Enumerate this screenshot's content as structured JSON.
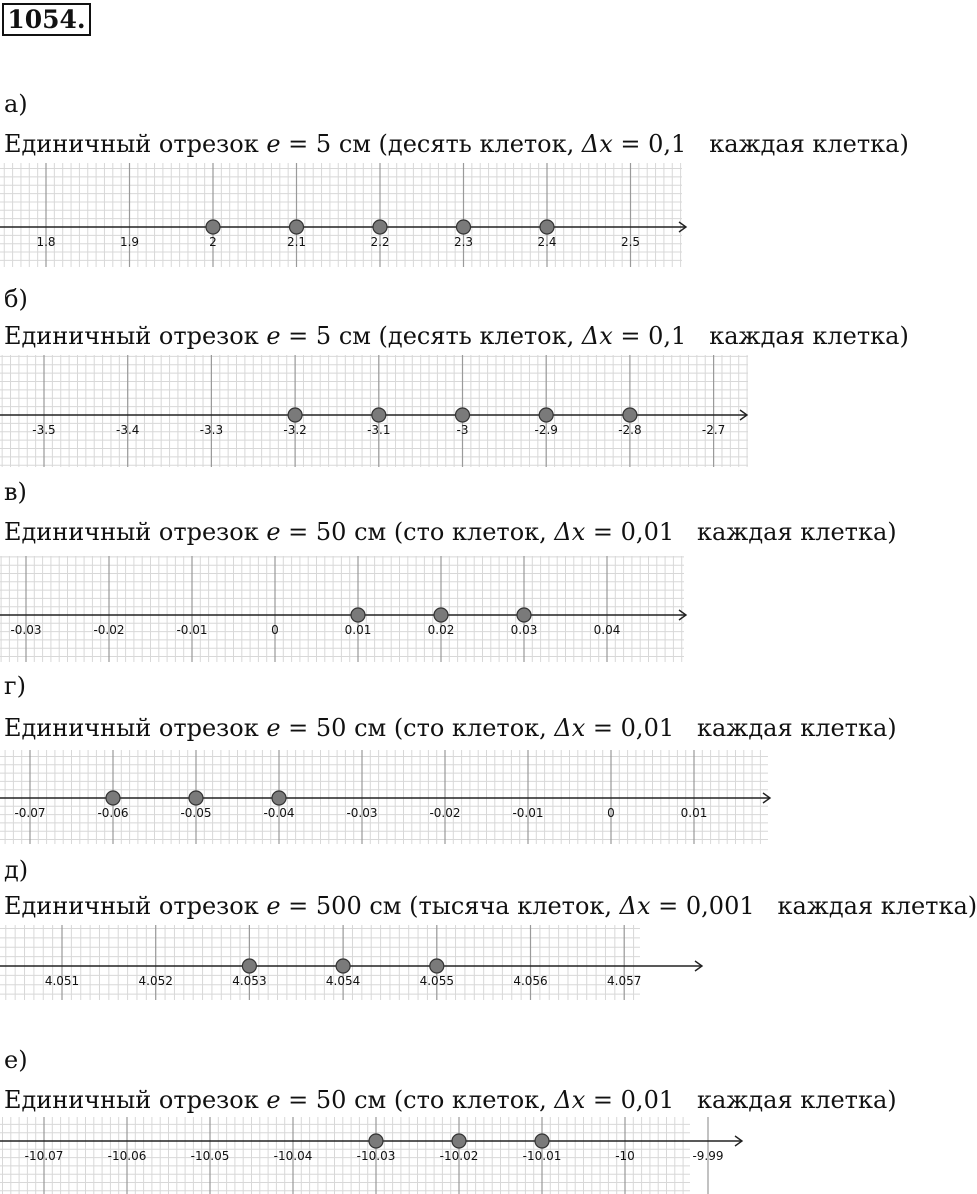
{
  "problem_number": "1054.",
  "colors": {
    "grid": "#d8d8d8",
    "major": "#9a9a9a",
    "axis": "#222222",
    "point_fill": "#7a7a7a",
    "point_stroke": "#333333"
  },
  "parts": [
    {
      "label": "а)",
      "desc_pre": "Единичный отрезок ",
      "e_symbol": "e",
      "desc_mid": " = 5 см (десять клеток, ",
      "dx_symbol": "Δx",
      "desc_post": " = 0,1   каждая клетка)",
      "ticks": [
        "1.8",
        "1.9",
        "2",
        "2.1",
        "2.2",
        "2.3",
        "2.4",
        "2.5"
      ],
      "points": [
        2,
        3,
        4,
        5,
        6
      ]
    },
    {
      "label": "б)",
      "desc_pre": "Единичный отрезок ",
      "e_symbol": "e",
      "desc_mid": " = 5 см (десять клеток, ",
      "dx_symbol": "Δx",
      "desc_post": " = 0,1   каждая клетка)",
      "ticks": [
        "-3.5",
        "-3.4",
        "-3.3",
        "-3.2",
        "-3.1",
        "-3",
        "-2.9",
        "-2.8",
        "-2.7"
      ],
      "points": [
        3,
        4,
        5,
        6,
        7
      ]
    },
    {
      "label": "в)",
      "desc_pre": "Единичный отрезок ",
      "e_symbol": "e",
      "desc_mid": " = 50 см (сто клеток, ",
      "dx_symbol": "Δx",
      "desc_post": " = 0,01   каждая клетка)",
      "ticks": [
        "-0.03",
        "-0.02",
        "-0.01",
        "0",
        "0.01",
        "0.02",
        "0.03",
        "0.04"
      ],
      "points": [
        4,
        5,
        6
      ]
    },
    {
      "label": "г)",
      "desc_pre": "Единичный отрезок ",
      "e_symbol": "e",
      "desc_mid": " = 50 см (сто клеток, ",
      "dx_symbol": "Δx",
      "desc_post": " = 0,01   каждая клетка)",
      "ticks": [
        "-0.07",
        "-0.06",
        "-0.05",
        "-0.04",
        "-0.03",
        "-0.02",
        "-0.01",
        "0",
        "0.01"
      ],
      "points": [
        1,
        2,
        3
      ]
    },
    {
      "label": "д)",
      "desc_pre": "Единичный отрезок ",
      "e_symbol": "e",
      "desc_mid": " = 500 см (тысяча клеток, ",
      "dx_symbol": "Δx",
      "desc_post": " = 0,001   каждая клетка)",
      "ticks": [
        "4.051",
        "4.052",
        "4.053",
        "4.054",
        "4.055",
        "4.056",
        "4.057"
      ],
      "points": [
        2,
        3,
        4
      ]
    },
    {
      "label": "е)",
      "desc_pre": "Единичный отрезок ",
      "e_symbol": "e",
      "desc_mid": " = 50 см (сто клеток, ",
      "dx_symbol": "Δx",
      "desc_post": " = 0,01   каждая клетка)",
      "ticks": [
        "-10.07",
        "-10.06",
        "-10.05",
        "-10.04",
        "-10.03",
        "-10.02",
        "-10.01",
        "-10",
        "-9.99"
      ],
      "points": [
        4,
        5,
        6
      ]
    }
  ]
}
